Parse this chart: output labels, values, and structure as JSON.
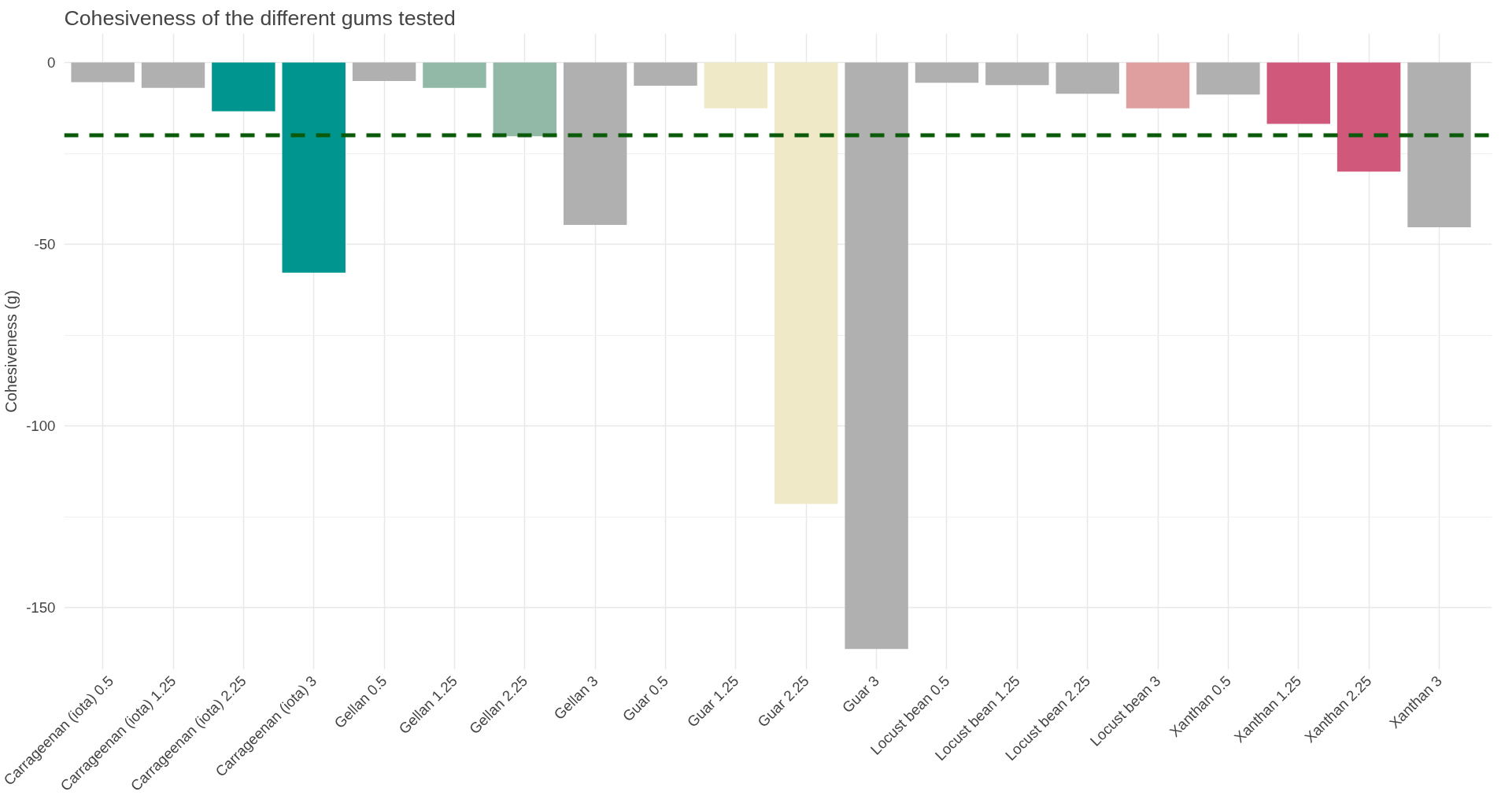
{
  "chart_data": {
    "type": "bar",
    "title": "Cohesiveness of the different gums tested",
    "ylabel": "Cohesiveness (g)",
    "categories": [
      "Carrageenan (iota) 0.5",
      "Carrageenan (iota) 1.25",
      "Carrageenan (iota) 2.25",
      "Carrageenan (iota) 3",
      "Gellan 0.5",
      "Gellan 1.25",
      "Gellan 2.25",
      "Gellan 3",
      "Guar 0.5",
      "Guar 1.25",
      "Guar 2.25",
      "Guar 3",
      "Locust bean 0.5",
      "Locust bean 1.25",
      "Locust bean 2.25",
      "Locust bean 3",
      "Xanthan 0.5",
      "Xanthan 1.25",
      "Xanthan 2.25",
      "Xanthan 3"
    ],
    "values": [
      -5.4,
      -7,
      -13.4,
      -57.8,
      -5.1,
      -7,
      -20.3,
      -44.7,
      -6.4,
      -12.6,
      -121.4,
      -161.3,
      -5.6,
      -6.2,
      -8.6,
      -12.6,
      -8.8,
      -16.9,
      -30,
      -45.3
    ],
    "colors": [
      "#b0b0b0",
      "#b0b0b0",
      "#009690",
      "#009690",
      "#b0b0b0",
      "#92b8a8",
      "#92b8a8",
      "#b0b0b0",
      "#b0b0b0",
      "#f0e9c8",
      "#f0e9c8",
      "#b0b0b0",
      "#b0b0b0",
      "#b0b0b0",
      "#b0b0b0",
      "#e09f9f",
      "#b0b0b0",
      "#d0587a",
      "#d0587a",
      "#b0b0b0"
    ],
    "ylim": [
      -167,
      8
    ],
    "yticks": [
      0,
      -50,
      -100,
      -150
    ],
    "grid": true,
    "ref_lines": [
      {
        "axis": "y",
        "value": -20,
        "color": "#0b5a0b",
        "line_style": "dashed"
      }
    ]
  }
}
